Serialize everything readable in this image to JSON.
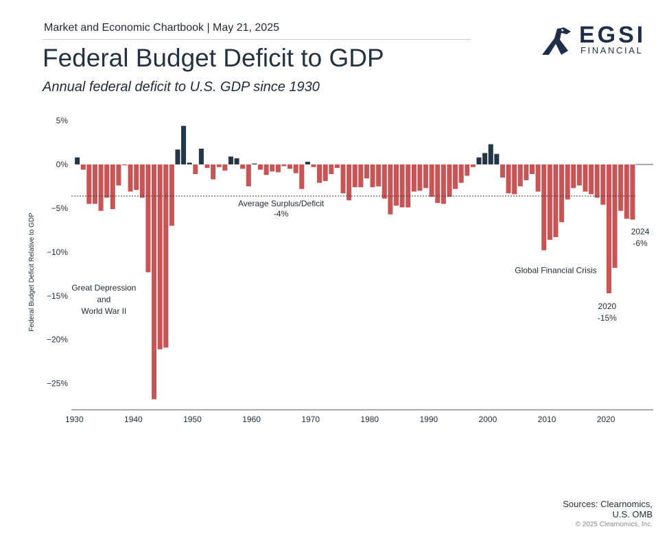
{
  "header": {
    "chartbook": "Market and Economic Chartbook | May 21, 2025",
    "title": "Federal Budget Deficit to GDP",
    "subtitle": "Annual federal deficit to U.S. GDP since 1930"
  },
  "logo": {
    "main": "EGSI",
    "sub": "FINANCIAL",
    "icon": "eagle-head-icon"
  },
  "footer": {
    "sources_line1": "Sources: Clearnomics,",
    "sources_line2": "U.S. OMB",
    "copyright": "© 2025 Clearnomics, Inc."
  },
  "colors": {
    "surplus": "#253746",
    "deficit": "#c85456",
    "axis": "#555555",
    "text": "#1f2a35"
  },
  "chart_data": {
    "type": "bar",
    "ylabel": "Federal Budget Deficit Relative to GDP",
    "ylim": [
      -28,
      5
    ],
    "xlim": [
      1929.5,
      2028
    ],
    "y_ticks": [
      5,
      0,
      -5,
      -10,
      -15,
      -20,
      -25
    ],
    "y_tick_labels": [
      "5%",
      "0%",
      "−5%",
      "−10%",
      "−15%",
      "−20%",
      "−25%"
    ],
    "x_ticks": [
      1930,
      1940,
      1950,
      1960,
      1970,
      1980,
      1990,
      2000,
      2010,
      2020
    ],
    "x_tick_labels": [
      "1930",
      "1940",
      "1950",
      "1960",
      "1970",
      "1980",
      "1990",
      "2000",
      "2010",
      "2020"
    ],
    "grid": false,
    "average": {
      "value": -3.6,
      "label_line1": "Average Surplus/Deficit",
      "label_line2": "-4%"
    },
    "years": [
      1930,
      1931,
      1932,
      1933,
      1934,
      1935,
      1936,
      1937,
      1938,
      1939,
      1940,
      1941,
      1942,
      1943,
      1944,
      1945,
      1946,
      1947,
      1948,
      1949,
      1950,
      1951,
      1952,
      1953,
      1954,
      1955,
      1956,
      1957,
      1958,
      1959,
      1960,
      1961,
      1962,
      1963,
      1964,
      1965,
      1966,
      1967,
      1968,
      1969,
      1970,
      1971,
      1972,
      1973,
      1974,
      1975,
      1976,
      1977,
      1978,
      1979,
      1980,
      1981,
      1982,
      1983,
      1984,
      1985,
      1986,
      1987,
      1988,
      1989,
      1990,
      1991,
      1992,
      1993,
      1994,
      1995,
      1996,
      1997,
      1998,
      1999,
      2000,
      2001,
      2002,
      2003,
      2004,
      2005,
      2006,
      2007,
      2008,
      2009,
      2010,
      2011,
      2012,
      2013,
      2014,
      2015,
      2016,
      2017,
      2018,
      2019,
      2020,
      2021,
      2022,
      2023,
      2024
    ],
    "values": [
      0.8,
      -0.6,
      -4.5,
      -4.5,
      -5.3,
      -3.8,
      -5.1,
      -2.4,
      -0.1,
      -3.1,
      -2.9,
      -3.8,
      -12.3,
      -26.8,
      -21.1,
      -20.9,
      -7.0,
      1.7,
      4.4,
      0.2,
      -1.1,
      1.8,
      -0.4,
      -1.7,
      -0.3,
      -0.7,
      0.9,
      0.7,
      -0.5,
      -2.5,
      0.1,
      -0.6,
      -1.2,
      -0.8,
      -0.9,
      -0.2,
      -0.5,
      -1.0,
      -2.8,
      0.3,
      -0.3,
      -2.1,
      -1.9,
      -1.1,
      -0.4,
      -3.3,
      -4.1,
      -2.6,
      -2.6,
      -1.6,
      -2.6,
      -2.5,
      -3.9,
      -5.7,
      -4.7,
      -4.9,
      -4.9,
      -3.1,
      -3.0,
      -2.7,
      -3.7,
      -4.4,
      -4.5,
      -3.7,
      -2.8,
      -2.1,
      -1.3,
      -0.3,
      0.8,
      1.3,
      2.3,
      1.2,
      -1.5,
      -3.3,
      -3.4,
      -2.5,
      -1.8,
      -1.1,
      -3.1,
      -9.8,
      -8.6,
      -8.3,
      -6.6,
      -4.0,
      -2.7,
      -2.4,
      -3.1,
      -3.4,
      -3.8,
      -4.6,
      -14.7,
      -11.8,
      -5.3,
      -6.2,
      -6.3
    ],
    "annotations": [
      {
        "name": "great-depression",
        "lines": [
          "Great Depression",
          "and",
          "World War II"
        ],
        "x": 1935,
        "y": -14.4
      },
      {
        "name": "gfc",
        "text": "Global Financial Crisis",
        "x": 2011.5,
        "y": -12.4
      },
      {
        "name": "covid-2020",
        "lines": [
          "2020",
          "-15%"
        ],
        "x": 2020.2,
        "y": -16.5
      },
      {
        "name": "latest-2024",
        "lines": [
          "2024",
          "-6%"
        ],
        "x": 2025.8,
        "y": -8.0
      }
    ]
  }
}
